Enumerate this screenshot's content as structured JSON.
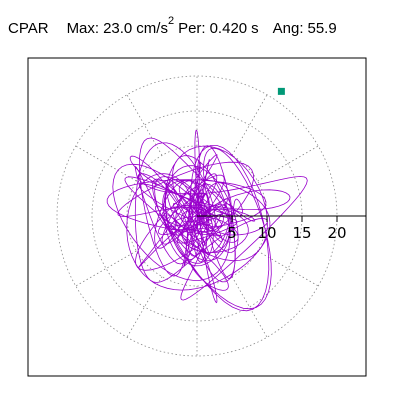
{
  "header": {
    "station": "CPAR",
    "max_label": "Max:",
    "max_value": "23.0",
    "max_unit": "cm/s",
    "max_unit_exp": "2",
    "per_label": "Per:",
    "per_value": "0.420",
    "per_unit": "s",
    "ang_label": "Ang:",
    "ang_value": "55.9"
  },
  "chart_data": {
    "type": "polar-trace",
    "title": "",
    "radial_ticks": [
      5,
      10,
      15,
      20
    ],
    "radial_tick_labels": [
      "5",
      "10",
      "15",
      "20"
    ],
    "rlim": [
      0,
      23
    ],
    "grid": "dotted polar",
    "series": [
      {
        "color": "#9900cc",
        "description_max_radius": 23.0
      }
    ],
    "marker": {
      "shape": "square",
      "color": "#009977",
      "r": 21.5,
      "angle_deg": 55.9
    }
  },
  "colors": {
    "trace": "#9900cc",
    "marker": "#009977",
    "grid": "#888888",
    "axis": "#000000"
  }
}
